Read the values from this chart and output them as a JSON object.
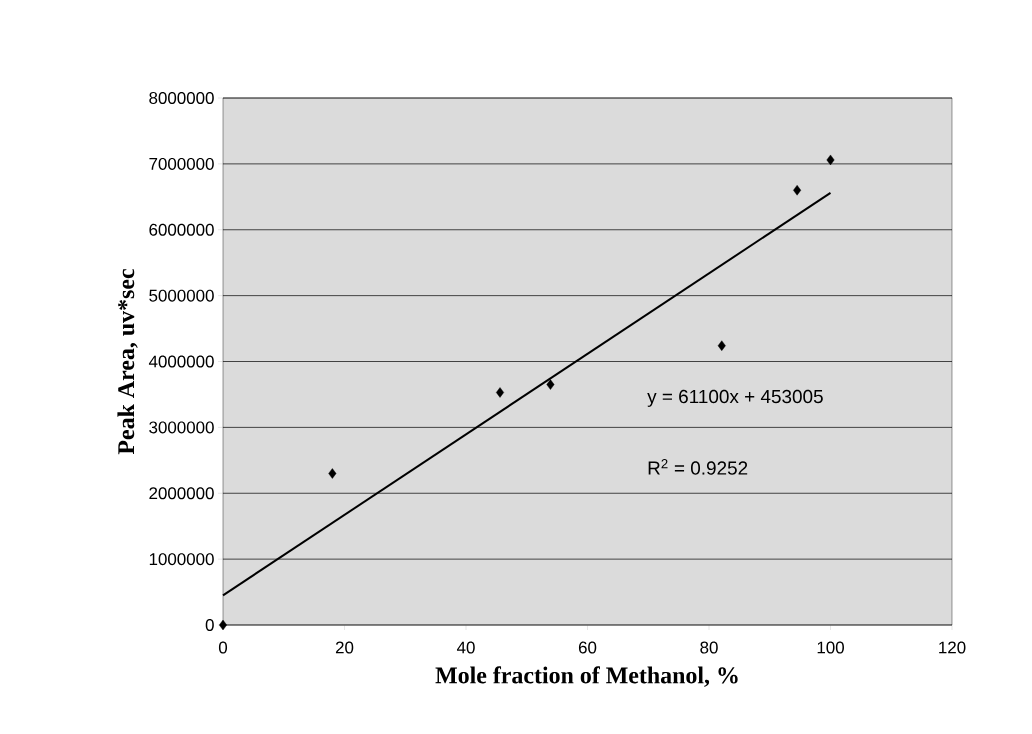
{
  "chart_data": {
    "type": "scatter",
    "xlabel": "Mole fraction of Methanol, %",
    "ylabel": "Peak Area, uv*sec",
    "xlim": [
      0,
      120
    ],
    "xticks": [
      0,
      20,
      40,
      60,
      80,
      100,
      120
    ],
    "ylim": [
      0,
      8000000
    ],
    "yticks": [
      0,
      1000000,
      2000000,
      3000000,
      4000000,
      5000000,
      6000000,
      7000000,
      8000000
    ],
    "grid": "y",
    "series": [
      {
        "color": "#000000",
        "marker": "diamond",
        "x": [
          0,
          18,
          45.6,
          53.9,
          82.1,
          94.5,
          100
        ],
        "values": [
          0,
          2300000,
          3530000,
          3650000,
          4240000,
          6600000,
          7060000
        ]
      },
      {
        "type": "line",
        "color": "#000000",
        "marker": "none",
        "x": [
          0,
          100
        ],
        "values": [
          450000,
          6560000
        ]
      }
    ],
    "annotations": [
      "y = 61100x + 453005",
      "R$^{2}$ = 0.9252"
    ]
  }
}
